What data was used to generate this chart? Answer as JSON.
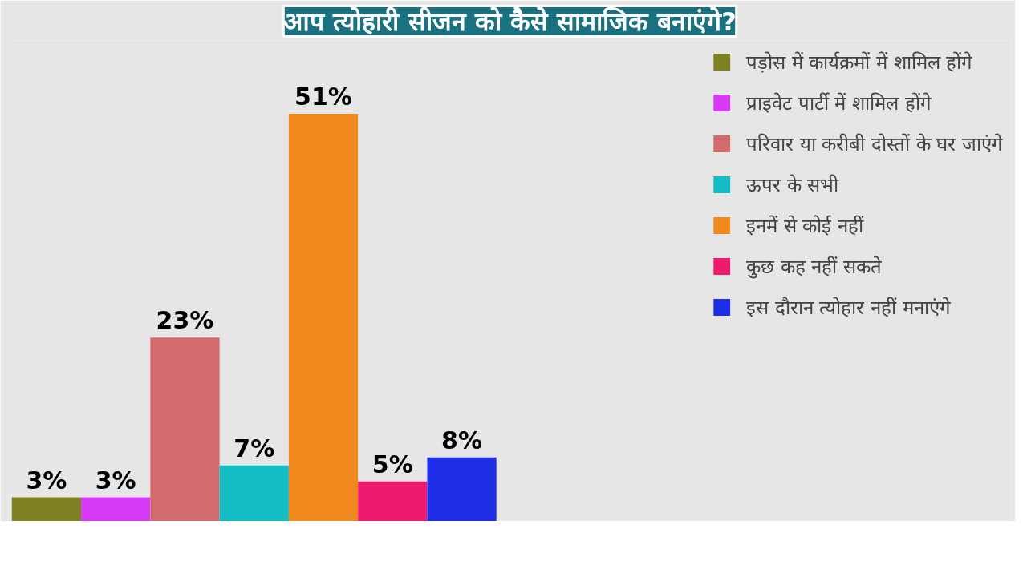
{
  "chart_data": {
    "type": "bar",
    "title": "आप त्योहारी सीजन को कैसे सामाजिक बनाएंगे?",
    "categories": [
      null,
      null,
      null,
      null,
      null,
      null,
      null
    ],
    "stacked": true,
    "series": [
      {
        "name": "पड़ोस में कार्यक्रमों में शामिल होंगे",
        "color": "#7f8020",
        "values": [
          3,
          null,
          null,
          null,
          null,
          null,
          null
        ],
        "value_labels": [
          "3%",
          null,
          null,
          null,
          null,
          null,
          null
        ]
      },
      {
        "name": "प्राइवेट पार्टी में शामिल होंगे",
        "color": "#d63af5",
        "values": [
          null,
          3,
          null,
          null,
          null,
          null,
          null
        ],
        "value_labels": [
          null,
          "3%",
          null,
          null,
          null,
          null,
          null
        ]
      },
      {
        "name": "परिवार या करीबी दोस्तों के घर जाएंगे",
        "color": "#d36b6e",
        "values": [
          null,
          null,
          23,
          null,
          null,
          null,
          null
        ],
        "value_labels": [
          null,
          null,
          "23%",
          null,
          null,
          null,
          null
        ]
      },
      {
        "name": "ऊपर के सभी",
        "color": "#14bcc4",
        "values": [
          null,
          null,
          null,
          7,
          null,
          null,
          null
        ],
        "value_labels": [
          null,
          null,
          null,
          "7%",
          null,
          null,
          null
        ]
      },
      {
        "name": "इनमें से कोई नहीं",
        "color": "#f0891d",
        "values": [
          null,
          null,
          null,
          null,
          51,
          null,
          null
        ],
        "value_labels": [
          null,
          null,
          null,
          null,
          "51%",
          null,
          null
        ]
      },
      {
        "name": "कुछ कह नहीं सकते",
        "color": "#ee1a6d",
        "values": [
          null,
          null,
          null,
          null,
          null,
          5,
          null
        ],
        "value_labels": [
          null,
          null,
          null,
          null,
          null,
          "5%",
          null
        ]
      },
      {
        "name": "इस दौरान त्योहार नहीं मनाएंगे",
        "color": "#1f2fe8",
        "values": [
          null,
          null,
          null,
          null,
          null,
          null,
          8
        ],
        "value_labels": [
          null,
          null,
          null,
          null,
          null,
          null,
          "8%"
        ]
      }
    ],
    "legend": "right",
    "tick_labels": false
  }
}
